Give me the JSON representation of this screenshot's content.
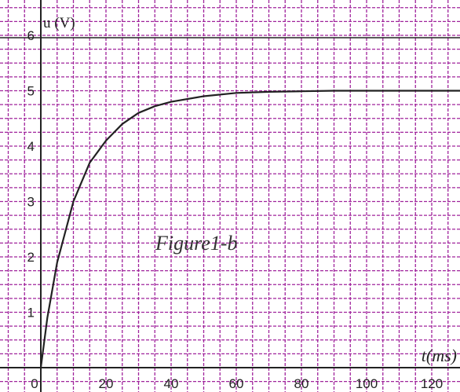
{
  "chart_data": {
    "type": "line",
    "title": "",
    "annotation": "Figure1-b",
    "xlabel": "t(ms)",
    "ylabel": "u (V)",
    "xlim": [
      0,
      130
    ],
    "ylim": [
      0,
      6
    ],
    "x_ticks": [
      "0",
      "20",
      "40",
      "60",
      "80",
      "100",
      "120"
    ],
    "y_ticks": [
      "1",
      "2",
      "3",
      "4",
      "5",
      "6"
    ],
    "grid": true,
    "colors": {
      "grid": "#a0249c",
      "axis": "#222222",
      "curve": "#222222"
    },
    "series": [
      {
        "x": [
          0,
          2,
          5,
          10,
          15,
          20,
          25,
          30,
          35,
          40,
          50,
          60,
          70,
          80,
          90,
          100,
          110,
          120,
          130
        ],
        "values": [
          0,
          0.9,
          1.9,
          3.0,
          3.7,
          4.1,
          4.4,
          4.6,
          4.72,
          4.8,
          4.9,
          4.96,
          4.98,
          4.99,
          5.0,
          5.0,
          5.0,
          5.0,
          5.0
        ]
      }
    ]
  }
}
